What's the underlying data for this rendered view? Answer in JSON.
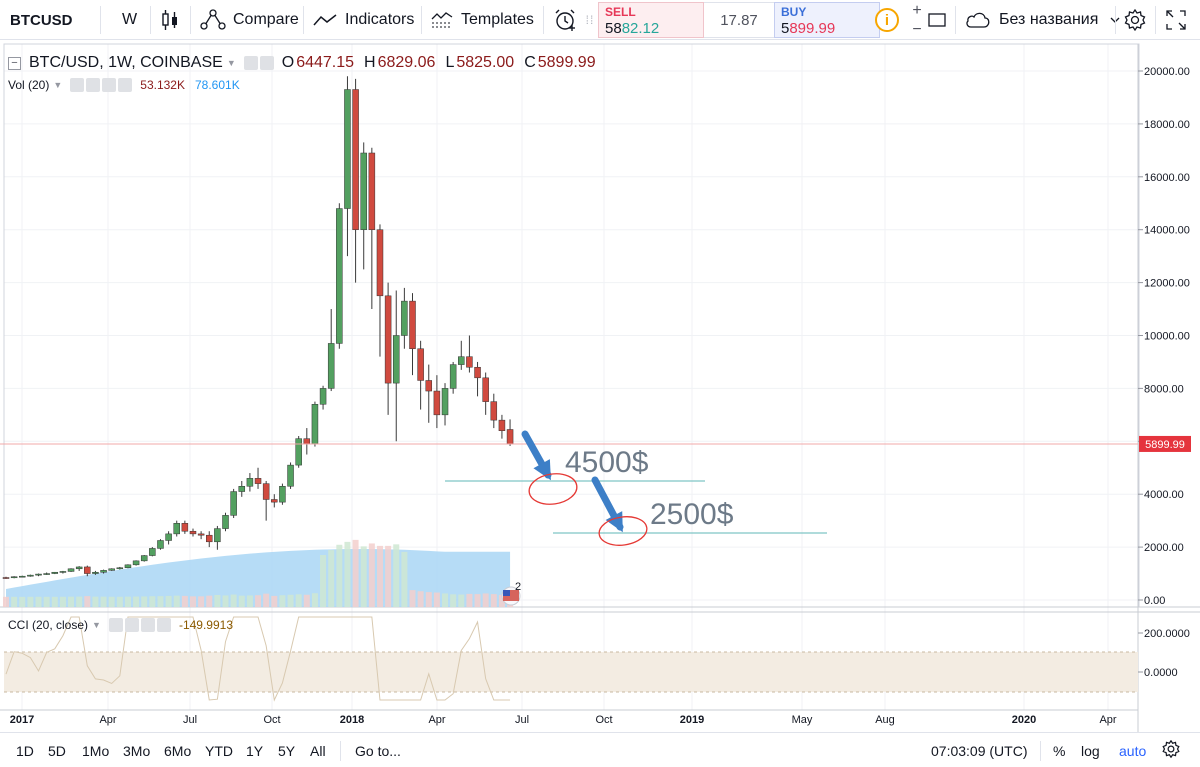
{
  "toolbar": {
    "symbol": "BTCUSD",
    "interval": "W",
    "compare_label": "Compare",
    "indicators_label": "Indicators",
    "templates_label": "Templates",
    "sell_label": "SELL",
    "sell_price_prefix": "58",
    "sell_price_suffix": "82.12",
    "spread": "17.87",
    "buy_label": "BUY",
    "buy_price_prefix": "5",
    "buy_price_suffix": "899.99",
    "info_label": "i",
    "zoom_in_label": "+",
    "zoom_out_label": "−",
    "layout_name": "Без названия"
  },
  "legend": {
    "title": "BTC/USD, 1W, COINBASE",
    "open_label": "O",
    "open": "6447.15",
    "high_label": "H",
    "high": "6829.06",
    "low_label": "L",
    "low": "5825.00",
    "close_label": "C",
    "close": "5899.99",
    "vol_title": "Vol (20)",
    "vol_value_1": "53.132K",
    "vol_value_2": "78.601K",
    "cci_title": "CCI (20, close)",
    "cci_value": "-149.9913"
  },
  "price_axis": {
    "labels": [
      "20000.00",
      "18000.00",
      "16000.00",
      "14000.00",
      "12000.00",
      "10000.00",
      "8000.00",
      "6000.00",
      "4000.00",
      "2000.00",
      "0.00"
    ],
    "current_price_label": "5899.99",
    "current_price_color": "#e5343d"
  },
  "cci_axis": {
    "labels": [
      "200.0000",
      "0.0000"
    ]
  },
  "time_axis": {
    "labels": [
      "2017",
      "Apr",
      "Jul",
      "Oct",
      "2018",
      "Apr",
      "Jul",
      "Oct",
      "2019",
      "May",
      "Aug",
      "2020",
      "Apr"
    ]
  },
  "annotations": {
    "target_1": "4500$",
    "target_2": "2500$",
    "badge_number": "2",
    "arrow_color": "#3d7fc7",
    "circle_color": "#e53935",
    "line_color": "#7fc5c5"
  },
  "colors": {
    "up": "#53a060",
    "down": "#d04a3f",
    "volume_ma_fill": "#a9d6f5",
    "cci_band": "#f3ece2",
    "cci_line": "#d8c9b0"
  },
  "chart_data": {
    "type": "candlestick",
    "interval": "1W",
    "note_source": "BTC/USD, 1W, COINBASE",
    "ylim": [
      0,
      20500
    ],
    "candles": [
      [
        850,
        880,
        800,
        840
      ],
      [
        840,
        900,
        820,
        880
      ],
      [
        880,
        920,
        860,
        900
      ],
      [
        900,
        960,
        880,
        940
      ],
      [
        940,
        1000,
        900,
        980
      ],
      [
        980,
        1040,
        950,
        1000
      ],
      [
        1000,
        1060,
        980,
        1050
      ],
      [
        1050,
        1100,
        1000,
        1080
      ],
      [
        1080,
        1200,
        1060,
        1180
      ],
      [
        1180,
        1280,
        1100,
        1250
      ],
      [
        1250,
        1300,
        900,
        1000
      ],
      [
        1000,
        1100,
        950,
        1050
      ],
      [
        1050,
        1150,
        1000,
        1120
      ],
      [
        1120,
        1200,
        1100,
        1180
      ],
      [
        1180,
        1250,
        1150,
        1220
      ],
      [
        1220,
        1350,
        1200,
        1330
      ],
      [
        1330,
        1500,
        1300,
        1480
      ],
      [
        1480,
        1700,
        1450,
        1680
      ],
      [
        1680,
        2000,
        1650,
        1950
      ],
      [
        1950,
        2300,
        1900,
        2250
      ],
      [
        2250,
        2600,
        2100,
        2500
      ],
      [
        2500,
        3000,
        2400,
        2900
      ],
      [
        2900,
        3000,
        2500,
        2600
      ],
      [
        2600,
        2700,
        2400,
        2500
      ],
      [
        2500,
        2600,
        2300,
        2450
      ],
      [
        2450,
        2600,
        2000,
        2200
      ],
      [
        2200,
        2800,
        1900,
        2700
      ],
      [
        2700,
        3300,
        2600,
        3200
      ],
      [
        3200,
        4200,
        3100,
        4100
      ],
      [
        4100,
        4500,
        3900,
        4300
      ],
      [
        4300,
        4800,
        4100,
        4600
      ],
      [
        4600,
        5000,
        4200,
        4400
      ],
      [
        4400,
        4500,
        3000,
        3800
      ],
      [
        3800,
        4000,
        3500,
        3700
      ],
      [
        3700,
        4400,
        3600,
        4300
      ],
      [
        4300,
        5200,
        4200,
        5100
      ],
      [
        5100,
        6200,
        5000,
        6100
      ],
      [
        6100,
        6500,
        5500,
        5900
      ],
      [
        5900,
        7500,
        5800,
        7400
      ],
      [
        7400,
        8100,
        7200,
        8000
      ],
      [
        8000,
        11000,
        7900,
        9700
      ],
      [
        9700,
        15000,
        9500,
        14800
      ],
      [
        14800,
        19800,
        13000,
        19300
      ],
      [
        19300,
        19700,
        12000,
        14000
      ],
      [
        14000,
        17300,
        12500,
        16900
      ],
      [
        16900,
        17100,
        11000,
        14000
      ],
      [
        14000,
        14200,
        9200,
        11500
      ],
      [
        11500,
        12000,
        7000,
        8200
      ],
      [
        8200,
        11700,
        6000,
        10000
      ],
      [
        10000,
        11800,
        9500,
        11300
      ],
      [
        11300,
        11600,
        8500,
        9500
      ],
      [
        9500,
        9800,
        7200,
        8300
      ],
      [
        8300,
        8900,
        6700,
        7900
      ],
      [
        7900,
        8500,
        6500,
        7000
      ],
      [
        7000,
        8200,
        6600,
        8000
      ],
      [
        8000,
        9000,
        7800,
        8900
      ],
      [
        8900,
        9800,
        8700,
        9200
      ],
      [
        9200,
        10000,
        8600,
        8800
      ],
      [
        8800,
        9000,
        7700,
        8400
      ],
      [
        8400,
        8600,
        7000,
        7500
      ],
      [
        7500,
        7800,
        6500,
        6800
      ],
      [
        6800,
        7000,
        6100,
        6400
      ],
      [
        6447,
        6829,
        5825,
        5900
      ]
    ]
  }
}
